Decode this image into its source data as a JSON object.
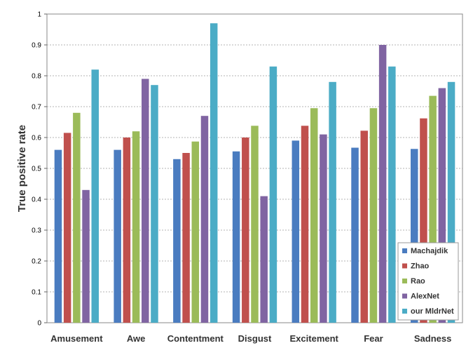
{
  "chart_data": {
    "type": "bar",
    "title": "",
    "xlabel": "",
    "ylabel": "True positive rate",
    "ylim": [
      0,
      1
    ],
    "yticks": [
      "0",
      "0.1",
      "0.2",
      "0.3",
      "0.4",
      "0.5",
      "0.6",
      "0.7",
      "0.8",
      "0.9",
      "1"
    ],
    "grid": true,
    "legend_position": "bottom-right",
    "categories": [
      "Amusement",
      "Awe",
      "Contentment",
      "Disgust",
      "Excitement",
      "Fear",
      "Sadness"
    ],
    "series": [
      {
        "name": "Machajdik",
        "color": "#4a7cc0",
        "values": [
          0.56,
          0.56,
          0.53,
          0.555,
          0.59,
          0.567,
          0.563
        ]
      },
      {
        "name": "Zhao",
        "color": "#c0504d",
        "values": [
          0.615,
          0.6,
          0.55,
          0.6,
          0.638,
          0.622,
          0.662
        ]
      },
      {
        "name": "Rao",
        "color": "#9bbb59",
        "values": [
          0.68,
          0.62,
          0.587,
          0.638,
          0.695,
          0.695,
          0.735
        ]
      },
      {
        "name": "AlexNet",
        "color": "#8064a2",
        "values": [
          0.43,
          0.79,
          0.67,
          0.41,
          0.61,
          0.9,
          0.76
        ]
      },
      {
        "name": "our MldrNet",
        "color": "#4bacc6",
        "values": [
          0.82,
          0.77,
          0.97,
          0.83,
          0.78,
          0.83,
          0.78
        ]
      }
    ]
  }
}
